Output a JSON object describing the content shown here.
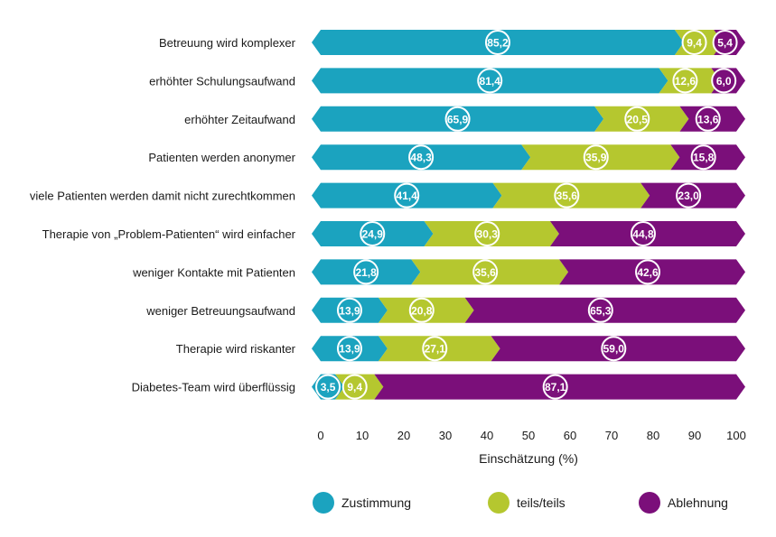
{
  "chart_data": {
    "type": "bar",
    "orientation": "horizontal",
    "stacked": true,
    "categories": [
      "Betreuung wird komplexer",
      "erhöhter Schulungsaufwand",
      "erhöhter Zeitaufwand",
      "Patienten werden anonymer",
      "viele Patienten werden damit nicht zurechtkommen",
      "Therapie von „Problem-Patienten“ wird einfacher",
      "weniger Kontakte mit Patienten",
      "weniger Betreuungsaufwand",
      "Therapie wird riskanter",
      "Diabetes-Team wird überflüssig"
    ],
    "series": [
      {
        "name": "Zustimmung",
        "color": "#1ba3bf",
        "values": [
          85.2,
          81.4,
          65.9,
          48.3,
          41.4,
          24.9,
          21.8,
          13.9,
          13.9,
          3.5
        ],
        "labels": [
          "85,2",
          "81,4",
          "65,9",
          "48,3",
          "41,4",
          "24,9",
          "21,8",
          "13,9",
          "13,9",
          "3,5"
        ]
      },
      {
        "name": "teils/teils",
        "color": "#b5c72f",
        "values": [
          9.4,
          12.6,
          20.5,
          35.9,
          35.6,
          30.3,
          35.6,
          20.8,
          27.1,
          9.4
        ],
        "labels": [
          "9,4",
          "12,6",
          "20,5",
          "35,9",
          "35,6",
          "30,3",
          "35,6",
          "20,8",
          "27,1",
          "9,4"
        ]
      },
      {
        "name": "Ablehnung",
        "color": "#7b0f7a",
        "values": [
          5.4,
          6.0,
          13.6,
          15.8,
          23.0,
          44.8,
          42.6,
          65.3,
          59.0,
          87.1
        ],
        "labels": [
          "5,4",
          "6,0",
          "13,6",
          "15,8",
          "23,0",
          "44,8",
          "42,6",
          "65,3",
          "59,0",
          "87,1"
        ]
      }
    ],
    "xaxis": {
      "label": "Einschätzung (%)",
      "ticks": [
        "0",
        "10",
        "20",
        "30",
        "40",
        "50",
        "60",
        "70",
        "80",
        "90",
        "100"
      ],
      "range": [
        0,
        100
      ]
    },
    "grid": false,
    "legend": "bottom"
  }
}
